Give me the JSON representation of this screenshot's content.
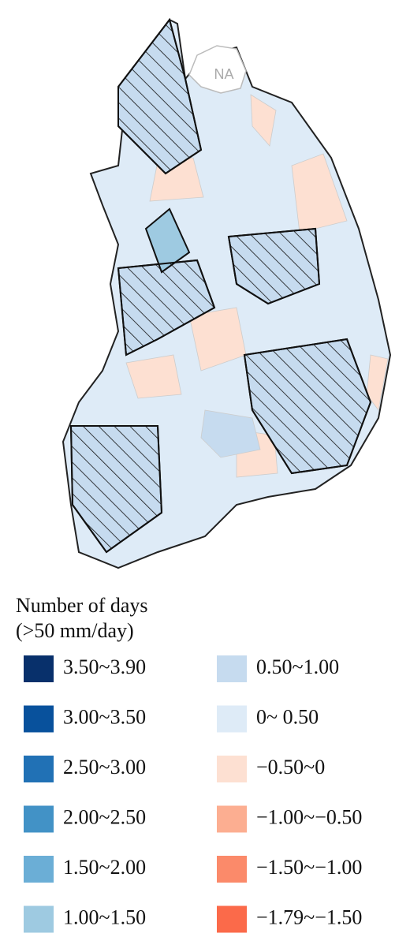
{
  "map": {
    "na_label": "NA"
  },
  "legend": {
    "title": [
      "Number of days",
      "(>50 mm/day)"
    ],
    "items": [
      {
        "label": "3.50~3.90",
        "color": "#08306b"
      },
      {
        "label": "3.00~3.50",
        "color": "#08519c"
      },
      {
        "label": "2.50~3.00",
        "color": "#2171b5"
      },
      {
        "label": "2.00~2.50",
        "color": "#4292c6"
      },
      {
        "label": "1.50~2.00",
        "color": "#6baed6"
      },
      {
        "label": "1.00~1.50",
        "color": "#9ecae1"
      },
      {
        "label": "0.50~1.00",
        "color": "#c6dbef"
      },
      {
        "label": "0~ 0.50",
        "color": "#deebf7"
      },
      {
        "label": "−0.50~0",
        "color": "#fde0d2"
      },
      {
        "label": "−1.00~−0.50",
        "color": "#fcae91"
      },
      {
        "label": "−1.50~−1.00",
        "color": "#fb8a6a"
      },
      {
        "label": "−1.79~−1.50",
        "color": "#fb6a4a"
      }
    ]
  }
}
